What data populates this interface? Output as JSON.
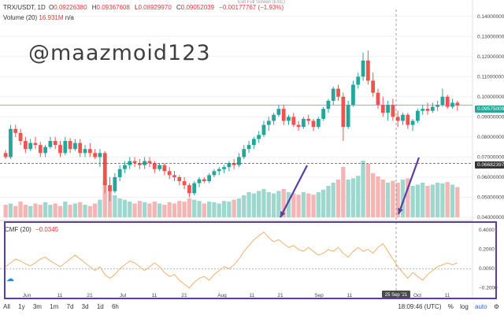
{
  "header": {
    "symbol": "TRX/USDT, 1D",
    "ohlc": [
      {
        "k": "O",
        "v": "0.09226380"
      },
      {
        "k": "H",
        "v": "0.09367608"
      },
      {
        "k": "L",
        "v": "0.08929970"
      },
      {
        "k": "C",
        "v": "0.09052039"
      }
    ],
    "change": "−0.00177767 (−1.93%)",
    "fullscreen": "Exit Full Screen (ESC)"
  },
  "volume_legend": {
    "label": "Volume (20)",
    "value": "16.931M",
    "extra": "n/a"
  },
  "cmf_legend": {
    "label": "CMF (20)",
    "value": "−0.0345"
  },
  "watermark": "@maazmoid123",
  "price_axis": {
    "ticks": [
      "0.14000000",
      "0.13000000",
      "0.12000000",
      "0.11000000",
      "0.10000000",
      "0.09000000",
      "0.08000000",
      "0.07000000",
      "0.06000000",
      "0.05000000",
      "0.04000000"
    ],
    "current_price": "0.09575009",
    "line_price": "0.06682397"
  },
  "cmf_axis": {
    "ticks": [
      "0.4000",
      "0.2000",
      "0.0000",
      "−0.2000"
    ]
  },
  "time_axis": {
    "labels": [
      "Jun",
      "11",
      "21",
      "Jul",
      "11",
      "21",
      "Aug",
      "11",
      "21",
      "Sep",
      "11",
      "Oct",
      "11"
    ],
    "crosshair": "25 Sep '21"
  },
  "toolbar": {
    "timeframes": [
      "All",
      "1y",
      "3m",
      "1m",
      "7d",
      "3d",
      "1d",
      "6h"
    ],
    "clock": "18:09:46 (UTC)",
    "percent": "%",
    "log": "log",
    "auto": "auto"
  },
  "colors": {
    "up": "#26a69a",
    "down": "#ef5350",
    "accent": "#5a3fa0",
    "cmf": "#f0a860"
  },
  "chart_data": {
    "type": "candlestick",
    "ylim": [
      0.04,
      0.145
    ],
    "candles": [
      [
        0.072,
        0.0735,
        0.069,
        0.07
      ],
      [
        0.07,
        0.086,
        0.069,
        0.084
      ],
      [
        0.084,
        0.086,
        0.08,
        0.082
      ],
      [
        0.082,
        0.084,
        0.076,
        0.078
      ],
      [
        0.078,
        0.08,
        0.072,
        0.074
      ],
      [
        0.074,
        0.079,
        0.073,
        0.077
      ],
      [
        0.077,
        0.08,
        0.074,
        0.076
      ],
      [
        0.076,
        0.0775,
        0.07,
        0.072
      ],
      [
        0.072,
        0.076,
        0.07,
        0.075
      ],
      [
        0.075,
        0.08,
        0.074,
        0.078
      ],
      [
        0.078,
        0.08,
        0.074,
        0.076
      ],
      [
        0.076,
        0.078,
        0.07,
        0.072
      ],
      [
        0.072,
        0.08,
        0.071,
        0.078
      ],
      [
        0.078,
        0.0795,
        0.072,
        0.074
      ],
      [
        0.074,
        0.079,
        0.073,
        0.077
      ],
      [
        0.077,
        0.079,
        0.07,
        0.072
      ],
      [
        0.072,
        0.076,
        0.07,
        0.074
      ],
      [
        0.074,
        0.077,
        0.07,
        0.072
      ],
      [
        0.072,
        0.074,
        0.069,
        0.07
      ],
      [
        0.07,
        0.074,
        0.065,
        0.072
      ],
      [
        0.072,
        0.073,
        0.052,
        0.056
      ],
      [
        0.056,
        0.06,
        0.048,
        0.053
      ],
      [
        0.053,
        0.062,
        0.052,
        0.06
      ],
      [
        0.06,
        0.066,
        0.058,
        0.064
      ],
      [
        0.064,
        0.068,
        0.062,
        0.066
      ],
      [
        0.066,
        0.07,
        0.064,
        0.068
      ],
      [
        0.068,
        0.07,
        0.065,
        0.067
      ],
      [
        0.067,
        0.069,
        0.064,
        0.066
      ],
      [
        0.066,
        0.07,
        0.064,
        0.068
      ],
      [
        0.068,
        0.07,
        0.065,
        0.067
      ],
      [
        0.067,
        0.068,
        0.062,
        0.064
      ],
      [
        0.064,
        0.067,
        0.063,
        0.066
      ],
      [
        0.066,
        0.067,
        0.061,
        0.063
      ],
      [
        0.063,
        0.065,
        0.059,
        0.061
      ],
      [
        0.061,
        0.063,
        0.058,
        0.06
      ],
      [
        0.06,
        0.061,
        0.056,
        0.058
      ],
      [
        0.058,
        0.06,
        0.054,
        0.056
      ],
      [
        0.056,
        0.057,
        0.05,
        0.052
      ],
      [
        0.052,
        0.058,
        0.051,
        0.057
      ],
      [
        0.057,
        0.06,
        0.055,
        0.059
      ],
      [
        0.059,
        0.06,
        0.057,
        0.058
      ],
      [
        0.058,
        0.062,
        0.057,
        0.061
      ],
      [
        0.061,
        0.064,
        0.06,
        0.063
      ],
      [
        0.063,
        0.065,
        0.061,
        0.064
      ],
      [
        0.064,
        0.066,
        0.062,
        0.065
      ],
      [
        0.065,
        0.068,
        0.063,
        0.067
      ],
      [
        0.067,
        0.069,
        0.064,
        0.066
      ],
      [
        0.066,
        0.072,
        0.065,
        0.07
      ],
      [
        0.07,
        0.076,
        0.069,
        0.074
      ],
      [
        0.074,
        0.078,
        0.072,
        0.076
      ],
      [
        0.076,
        0.08,
        0.074,
        0.079
      ],
      [
        0.079,
        0.083,
        0.077,
        0.081
      ],
      [
        0.081,
        0.088,
        0.08,
        0.086
      ],
      [
        0.086,
        0.09,
        0.083,
        0.088
      ],
      [
        0.088,
        0.092,
        0.086,
        0.091
      ],
      [
        0.091,
        0.096,
        0.09,
        0.094
      ],
      [
        0.094,
        0.096,
        0.086,
        0.088
      ],
      [
        0.088,
        0.091,
        0.086,
        0.09
      ],
      [
        0.09,
        0.092,
        0.085,
        0.086
      ],
      [
        0.086,
        0.088,
        0.083,
        0.085
      ],
      [
        0.085,
        0.09,
        0.084,
        0.089
      ],
      [
        0.089,
        0.091,
        0.086,
        0.088
      ],
      [
        0.088,
        0.089,
        0.083,
        0.085
      ],
      [
        0.085,
        0.09,
        0.084,
        0.089
      ],
      [
        0.089,
        0.095,
        0.088,
        0.094
      ],
      [
        0.094,
        0.099,
        0.092,
        0.098
      ],
      [
        0.098,
        0.105,
        0.096,
        0.104
      ],
      [
        0.104,
        0.106,
        0.098,
        0.1
      ],
      [
        0.1,
        0.102,
        0.078,
        0.085
      ],
      [
        0.085,
        0.098,
        0.084,
        0.096
      ],
      [
        0.096,
        0.108,
        0.095,
        0.106
      ],
      [
        0.106,
        0.112,
        0.104,
        0.11
      ],
      [
        0.11,
        0.122,
        0.108,
        0.118
      ],
      [
        0.118,
        0.123,
        0.106,
        0.108
      ],
      [
        0.108,
        0.112,
        0.1,
        0.102
      ],
      [
        0.102,
        0.104,
        0.094,
        0.096
      ],
      [
        0.096,
        0.1,
        0.09,
        0.092
      ],
      [
        0.092,
        0.098,
        0.088,
        0.096
      ],
      [
        0.096,
        0.099,
        0.088,
        0.09
      ],
      [
        0.09,
        0.093,
        0.085,
        0.088
      ],
      [
        0.088,
        0.092,
        0.086,
        0.091
      ],
      [
        0.091,
        0.092,
        0.084,
        0.086
      ],
      [
        0.086,
        0.089,
        0.083,
        0.088
      ],
      [
        0.088,
        0.094,
        0.087,
        0.093
      ],
      [
        0.093,
        0.096,
        0.091,
        0.094
      ],
      [
        0.094,
        0.097,
        0.091,
        0.093
      ],
      [
        0.093,
        0.097,
        0.092,
        0.095
      ],
      [
        0.095,
        0.098,
        0.093,
        0.096
      ],
      [
        0.096,
        0.104,
        0.095,
        0.1
      ],
      [
        0.1,
        0.101,
        0.094,
        0.095
      ],
      [
        0.095,
        0.099,
        0.094,
        0.097
      ],
      [
        0.097,
        0.098,
        0.093,
        0.0958
      ]
    ],
    "volume_ylim": [
      0,
      1
    ],
    "volumes": [
      0.2,
      0.22,
      0.18,
      0.25,
      0.2,
      0.18,
      0.22,
      0.2,
      0.24,
      0.2,
      0.22,
      0.18,
      0.25,
      0.2,
      0.22,
      0.24,
      0.2,
      0.18,
      0.22,
      0.28,
      0.6,
      0.45,
      0.35,
      0.3,
      0.28,
      0.25,
      0.22,
      0.26,
      0.24,
      0.22,
      0.25,
      0.22,
      0.2,
      0.24,
      0.22,
      0.26,
      0.25,
      0.3,
      0.28,
      0.26,
      0.22,
      0.25,
      0.24,
      0.22,
      0.26,
      0.25,
      0.28,
      0.3,
      0.35,
      0.4,
      0.38,
      0.42,
      0.45,
      0.4,
      0.38,
      0.42,
      0.45,
      0.4,
      0.38,
      0.36,
      0.4,
      0.38,
      0.36,
      0.4,
      0.44,
      0.5,
      0.55,
      0.6,
      0.8,
      0.6,
      0.62,
      0.66,
      0.9,
      0.85,
      0.7,
      0.65,
      0.6,
      0.55,
      0.58,
      0.55,
      0.6,
      0.62,
      0.5,
      0.52,
      0.55,
      0.5,
      0.52,
      0.55,
      0.54,
      0.56,
      0.52,
      0.48
    ],
    "cmf": [
      0.02,
      0.06,
      0.1,
      0.08,
      0.05,
      0.03,
      0.06,
      0.1,
      0.12,
      0.08,
      0.05,
      0.02,
      0.06,
      0.1,
      0.14,
      0.1,
      0.06,
      0.02,
      -0.02,
      0.02,
      -0.06,
      -0.1,
      -0.06,
      0.0,
      0.04,
      0.08,
      0.06,
      0.02,
      -0.02,
      0.02,
      0.06,
      0.02,
      -0.04,
      -0.08,
      -0.06,
      -0.12,
      -0.16,
      -0.2,
      -0.14,
      -0.1,
      -0.08,
      -0.12,
      -0.06,
      -0.02,
      0.02,
      0.0,
      0.04,
      0.1,
      0.18,
      0.24,
      0.3,
      0.34,
      0.38,
      0.32,
      0.28,
      0.3,
      0.26,
      0.22,
      0.24,
      0.2,
      0.18,
      0.22,
      0.18,
      0.14,
      0.16,
      0.2,
      0.18,
      0.22,
      0.16,
      0.12,
      0.18,
      0.22,
      0.18,
      0.2,
      0.16,
      0.22,
      0.26,
      0.18,
      0.1,
      0.02,
      -0.04,
      -0.1,
      -0.04,
      -0.08,
      -0.12,
      -0.06,
      -0.02,
      0.02,
      0.04,
      0.06,
      0.04,
      0.06
    ]
  }
}
